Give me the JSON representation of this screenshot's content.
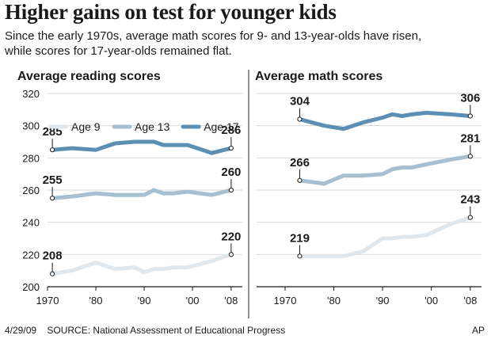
{
  "header": {
    "title": "Higher gains on test for younger kids",
    "subtitle_line1": "Since the early 1970s, average math scores for 9- and 13-year-olds have risen,",
    "subtitle_line2": "while scores for 17-year-olds remained flat."
  },
  "footer": {
    "date": "4/29/09",
    "source": "SOURCE: National Assessment of Educational Progress",
    "credit": "AP"
  },
  "colors": {
    "age9": "#e1e8ed",
    "age13": "#a6bfd1",
    "age17": "#5b8fb3",
    "gridline": "#d9d9d9",
    "panel_divider": "#222222"
  },
  "chart_data": [
    {
      "type": "line",
      "title": "Average reading scores",
      "ylim": [
        200,
        320
      ],
      "yticks": [
        200,
        220,
        240,
        260,
        280,
        300,
        320
      ],
      "xlim": [
        1970,
        2009
      ],
      "xticks": [
        1970,
        1980,
        1990,
        2000,
        2008
      ],
      "xtick_labels": [
        "1970",
        "'80",
        "'90",
        "'00",
        "'08"
      ],
      "legend": [
        "Age 9",
        "Age 13",
        "Age 17"
      ],
      "legend_position": "top-left",
      "grid": "horizontal",
      "series": [
        {
          "name": "Age 9",
          "x": [
            1971,
            1975,
            1980,
            1984,
            1988,
            1990,
            1992,
            1994,
            1996,
            1999,
            2004,
            2008
          ],
          "values": [
            208,
            210,
            215,
            211,
            212,
            209,
            211,
            211,
            212,
            212,
            216,
            220
          ],
          "start_label": "208",
          "end_label": "220"
        },
        {
          "name": "Age 13",
          "x": [
            1971,
            1975,
            1980,
            1984,
            1988,
            1990,
            1992,
            1994,
            1996,
            1999,
            2004,
            2008
          ],
          "values": [
            255,
            256,
            258,
            257,
            257,
            257,
            260,
            258,
            258,
            259,
            257,
            260
          ],
          "start_label": "255",
          "end_label": "260"
        },
        {
          "name": "Age 17",
          "x": [
            1971,
            1975,
            1980,
            1984,
            1988,
            1990,
            1992,
            1994,
            1996,
            1999,
            2004,
            2008
          ],
          "values": [
            285,
            286,
            285,
            289,
            290,
            290,
            290,
            288,
            288,
            288,
            283,
            286
          ],
          "start_label": "285",
          "end_label": "286"
        }
      ]
    },
    {
      "type": "line",
      "title": "Average math scores",
      "ylim": [
        200,
        320
      ],
      "xlim": [
        1970,
        2009
      ],
      "xticks": [
        1970,
        1980,
        1990,
        2000,
        2008
      ],
      "xtick_labels": [
        "1970",
        "'80",
        "'90",
        "'00",
        "'08"
      ],
      "grid": "horizontal",
      "series": [
        {
          "name": "Age 9",
          "x": [
            1973,
            1978,
            1982,
            1986,
            1990,
            1992,
            1994,
            1996,
            1999,
            2004,
            2008
          ],
          "values": [
            219,
            219,
            219,
            222,
            230,
            230,
            231,
            231,
            232,
            239,
            243
          ],
          "start_label": "219",
          "end_label": "243"
        },
        {
          "name": "Age 13",
          "x": [
            1973,
            1978,
            1982,
            1986,
            1990,
            1992,
            1994,
            1996,
            1999,
            2004,
            2008
          ],
          "values": [
            266,
            264,
            269,
            269,
            270,
            273,
            274,
            274,
            276,
            279,
            281
          ],
          "start_label": "266",
          "end_label": "281"
        },
        {
          "name": "Age 17",
          "x": [
            1973,
            1978,
            1982,
            1986,
            1990,
            1992,
            1994,
            1996,
            1999,
            2004,
            2008
          ],
          "values": [
            304,
            300,
            298,
            302,
            305,
            307,
            306,
            307,
            308,
            307,
            306
          ],
          "start_label": "304",
          "end_label": "306"
        }
      ]
    }
  ]
}
